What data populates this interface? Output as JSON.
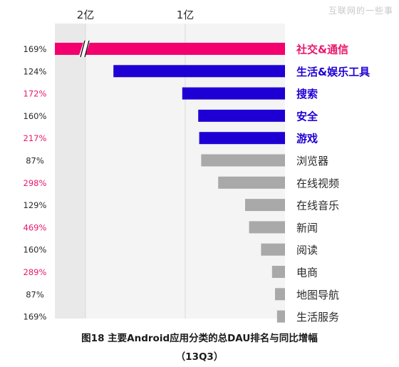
{
  "watermark": "互联网的一些事",
  "caption": {
    "title": "图18 主要Android应用分类的总DAU排名与同比增幅",
    "subtitle": "（13Q3）"
  },
  "colors": {
    "highlight_bar": "#f4006e",
    "blue_bar": "#1f00d4",
    "gray_bar": "#a9a9a9",
    "pink_text": "#e8186b",
    "blue_text": "#1f00d4",
    "dark_text": "#2a2a2a",
    "band_light": "#f4f4f4",
    "band_dark": "#e9e9e9"
  },
  "chart_data": {
    "type": "bar",
    "orientation": "horizontal",
    "axis_ticks": [
      "2亿",
      "1亿"
    ],
    "axis_break": true,
    "unit": "亿",
    "categories": [
      "社交&通信",
      "生活&娱乐工具",
      "搜索",
      "安全",
      "游戏",
      "浏览器",
      "在线视频",
      "在线音乐",
      "新闻",
      "阅读",
      "电商",
      "地图导航",
      "生活服务"
    ],
    "values": [
      3.2,
      1.72,
      1.03,
      0.87,
      0.86,
      0.84,
      0.67,
      0.4,
      0.36,
      0.24,
      0.13,
      0.1,
      0.08
    ],
    "growth_labels": [
      "169%",
      "124%",
      "172%",
      "160%",
      "217%",
      "87%",
      "298%",
      "129%",
      "469%",
      "160%",
      "289%",
      "87%",
      "169%"
    ],
    "growth_highlight": [
      false,
      false,
      true,
      false,
      true,
      false,
      true,
      false,
      true,
      false,
      true,
      false,
      false
    ],
    "bar_style": [
      "highlight",
      "blue",
      "blue",
      "blue",
      "blue",
      "gray",
      "gray",
      "gray",
      "gray",
      "gray",
      "gray",
      "gray",
      "gray"
    ],
    "broken_bar_index": 0
  }
}
